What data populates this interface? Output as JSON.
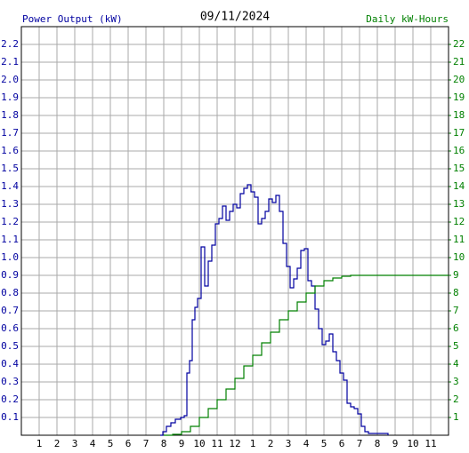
{
  "chart_data": {
    "type": "line",
    "title": "09/11/2024",
    "y_label": "Power Output (kW)",
    "y2_label": "Daily kW-Hours",
    "xlim": [
      0,
      24
    ],
    "xticks": [
      1,
      2,
      3,
      4,
      5,
      6,
      7,
      8,
      9,
      10,
      11,
      12,
      {
        "value": 13,
        "label": "1"
      },
      {
        "value": 14,
        "label": "2"
      },
      {
        "value": 15,
        "label": "3"
      },
      {
        "value": 16,
        "label": "4"
      },
      {
        "value": 17,
        "label": "5"
      },
      {
        "value": 18,
        "label": "6"
      },
      {
        "value": 19,
        "label": "7"
      },
      {
        "value": 20,
        "label": "8"
      },
      {
        "value": 21,
        "label": "9"
      },
      {
        "value": 22,
        "label": "10"
      },
      {
        "value": 23,
        "label": "11"
      }
    ],
    "ylim": [
      0,
      2.3
    ],
    "yticks": [
      0.1,
      0.2,
      0.3,
      0.4,
      0.5,
      0.6,
      0.7,
      0.8,
      0.9,
      {
        "value": 1,
        "label": "1.0"
      },
      1.1,
      1.2,
      1.3,
      1.4,
      1.5,
      1.6,
      1.7,
      1.8,
      1.9,
      {
        "value": 2,
        "label": "2.0"
      },
      2.1,
      2.2
    ],
    "y2lim": [
      0,
      23
    ],
    "y2ticks": [
      1,
      2,
      3,
      4,
      5,
      6,
      7,
      8,
      9,
      10,
      11,
      12,
      13,
      14,
      15,
      16,
      17,
      18,
      19,
      20,
      21,
      22
    ],
    "grid": true,
    "step": true,
    "series": [
      {
        "name": "Power Output (kW)",
        "color": "#0000a0",
        "axis": "y",
        "x": [
          7.8,
          7.95,
          8.15,
          8.4,
          8.65,
          8.95,
          9.15,
          9.3,
          9.45,
          9.6,
          9.75,
          9.9,
          10.1,
          10.3,
          10.5,
          10.7,
          10.9,
          11.1,
          11.3,
          11.5,
          11.7,
          11.9,
          12.1,
          12.3,
          12.5,
          12.7,
          12.9,
          13.1,
          13.3,
          13.5,
          13.7,
          13.9,
          14.1,
          14.3,
          14.5,
          14.7,
          14.9,
          15.1,
          15.3,
          15.5,
          15.7,
          15.9,
          16.1,
          16.3,
          16.5,
          16.7,
          16.9,
          17.1,
          17.3,
          17.5,
          17.7,
          17.9,
          18.1,
          18.3,
          18.5,
          18.7,
          18.9,
          19.1,
          19.3,
          19.5,
          19.8,
          20.6
        ],
        "values": [
          0,
          0.02,
          0.05,
          0.07,
          0.09,
          0.1,
          0.11,
          0.35,
          0.42,
          0.65,
          0.72,
          0.77,
          1.06,
          0.84,
          0.98,
          1.07,
          1.19,
          1.22,
          1.29,
          1.21,
          1.26,
          1.3,
          1.28,
          1.36,
          1.39,
          1.41,
          1.37,
          1.34,
          1.19,
          1.22,
          1.26,
          1.33,
          1.31,
          1.35,
          1.26,
          1.08,
          0.95,
          0.83,
          0.88,
          0.94,
          1.04,
          1.05,
          0.87,
          0.84,
          0.71,
          0.6,
          0.51,
          0.53,
          0.57,
          0.47,
          0.42,
          0.35,
          0.31,
          0.18,
          0.16,
          0.15,
          0.12,
          0.05,
          0.02,
          0.01,
          0.01,
          0
        ]
      },
      {
        "name": "Daily kW-Hours",
        "color": "#008000",
        "axis": "y2",
        "x": [
          8.0,
          8.5,
          9,
          9.5,
          10,
          10.5,
          11,
          11.5,
          12,
          12.5,
          13,
          13.5,
          14,
          14.5,
          15,
          15.5,
          16,
          16.5,
          17,
          17.5,
          18,
          18.5,
          19,
          24
        ],
        "values": [
          0,
          0.05,
          0.2,
          0.5,
          1.0,
          1.5,
          2.0,
          2.6,
          3.2,
          3.9,
          4.5,
          5.2,
          5.8,
          6.5,
          7.0,
          7.5,
          8.0,
          8.4,
          8.7,
          8.85,
          8.95,
          9.0,
          9.0,
          9.0
        ]
      }
    ]
  }
}
